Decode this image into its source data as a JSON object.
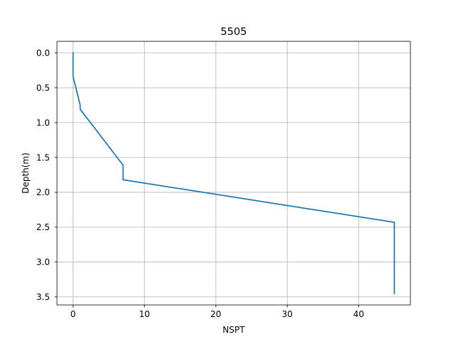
{
  "chart_data": {
    "type": "line",
    "title": "5505",
    "xlabel": "NSPT",
    "ylabel": "Depth(m)",
    "xlim": [
      -2.25,
      47.25
    ],
    "ylim": [
      3.615,
      -0.165
    ],
    "y_inverted": true,
    "grid": true,
    "x_ticks": [
      0,
      10,
      20,
      30,
      40
    ],
    "y_ticks": [
      0.0,
      0.5,
      1.0,
      1.5,
      2.0,
      2.5,
      3.0,
      3.5
    ],
    "x_tick_labels": [
      "0",
      "10",
      "20",
      "30",
      "40"
    ],
    "y_tick_labels": [
      "0.0",
      "0.5",
      "1.0",
      "1.5",
      "2.0",
      "2.5",
      "3.0",
      "3.5"
    ],
    "series": [
      {
        "color": "#1f77b4",
        "x": [
          0,
          0,
          1,
          1,
          7,
          7,
          45,
          45
        ],
        "y": [
          0.0,
          0.34,
          0.75,
          0.81,
          1.61,
          1.82,
          2.43,
          3.45
        ]
      }
    ]
  }
}
